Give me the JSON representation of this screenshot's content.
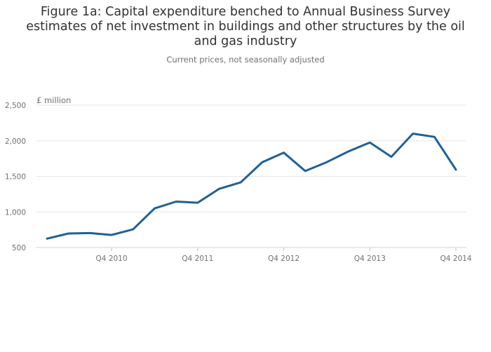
{
  "chart_data": {
    "type": "line",
    "title": "Figure 1a: Capital expenditure benched to Annual Business Survey estimates of net investment in buildings and other structures by the oil and gas industry",
    "subtitle": "Current prices, not seasonally adjusted",
    "ylabel": "£ million",
    "xlabel": "",
    "ylim": [
      500,
      2500
    ],
    "yticks": [
      {
        "value": 500,
        "label": "500"
      },
      {
        "value": 1000,
        "label": "1,000"
      },
      {
        "value": 1500,
        "label": "1,500"
      },
      {
        "value": 2000,
        "label": "2,000"
      },
      {
        "value": 2500,
        "label": "2,500"
      }
    ],
    "xticks": [
      {
        "index": 3,
        "label": "Q4 2010"
      },
      {
        "index": 7,
        "label": "Q4 2011"
      },
      {
        "index": 11,
        "label": "Q4 2012"
      },
      {
        "index": 15,
        "label": "Q4 2013"
      },
      {
        "index": 19,
        "label": "Q4 2014"
      }
    ],
    "grid": true,
    "series": [
      {
        "name": "Net investment in buildings and other structures",
        "color": "#206095",
        "values": [
          625,
          697,
          703,
          676,
          755,
          1050,
          1145,
          1130,
          1325,
          1415,
          1698,
          1833,
          1575,
          1700,
          1850,
          1975,
          1775,
          2100,
          2055,
          1595
        ]
      }
    ]
  }
}
